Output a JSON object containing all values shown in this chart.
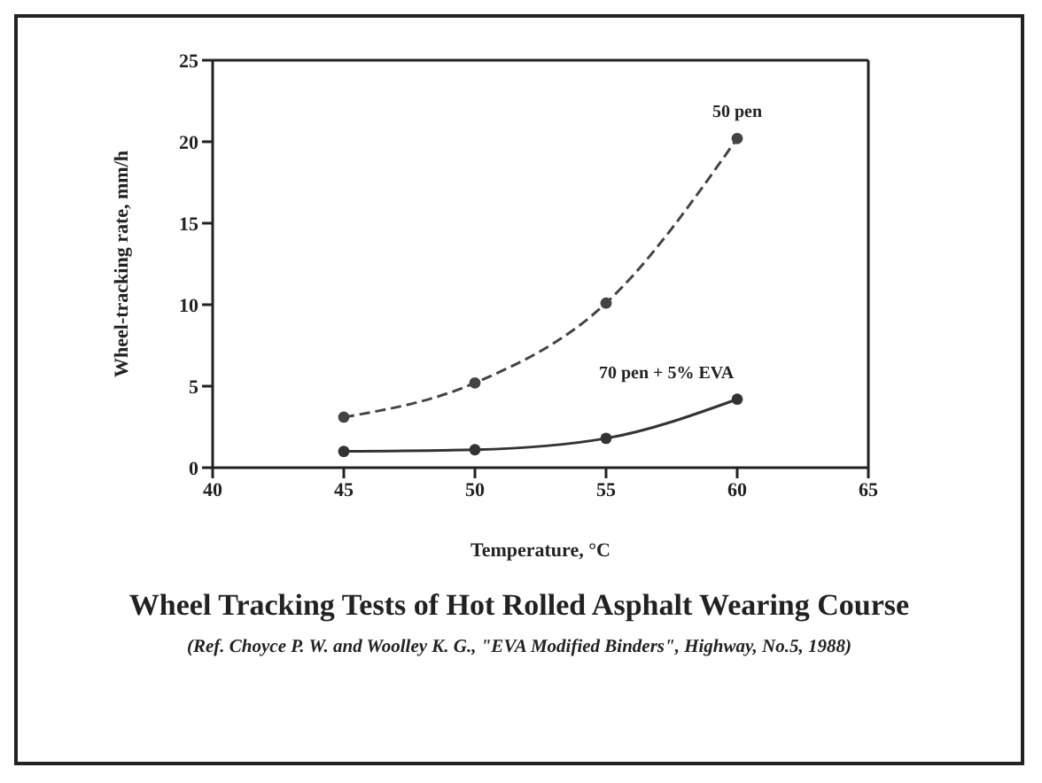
{
  "chart_data": {
    "type": "line",
    "title": "Wheel Tracking Tests of Hot Rolled Asphalt Wearing Course",
    "xlabel": "Temperature, °C",
    "ylabel": "Wheel-tracking rate, mm/h",
    "annotations": [
      "(Ref. Choyce P. W. and Woolley K. G., \"EVA Modified Binders\", Highway, No.5, 1988)"
    ],
    "x": [
      45,
      50,
      55,
      60
    ],
    "series": [
      {
        "name": "50 pen",
        "color": "#444444",
        "values": [
          3.1,
          5.2,
          10.1,
          20.2
        ],
        "line_style": "dashed"
      },
      {
        "name": "70 pen + 5% EVA",
        "color": "#333333",
        "values": [
          1.0,
          1.1,
          1.8,
          4.2
        ],
        "line_style": "solid"
      }
    ],
    "xlim": [
      40,
      65
    ],
    "xticks": [
      40,
      45,
      50,
      55,
      60,
      65
    ],
    "ylim": [
      0,
      25
    ],
    "yticks": [
      0,
      5,
      10,
      15,
      20,
      25
    ],
    "marker": "circle",
    "grid": false,
    "legend": false
  }
}
